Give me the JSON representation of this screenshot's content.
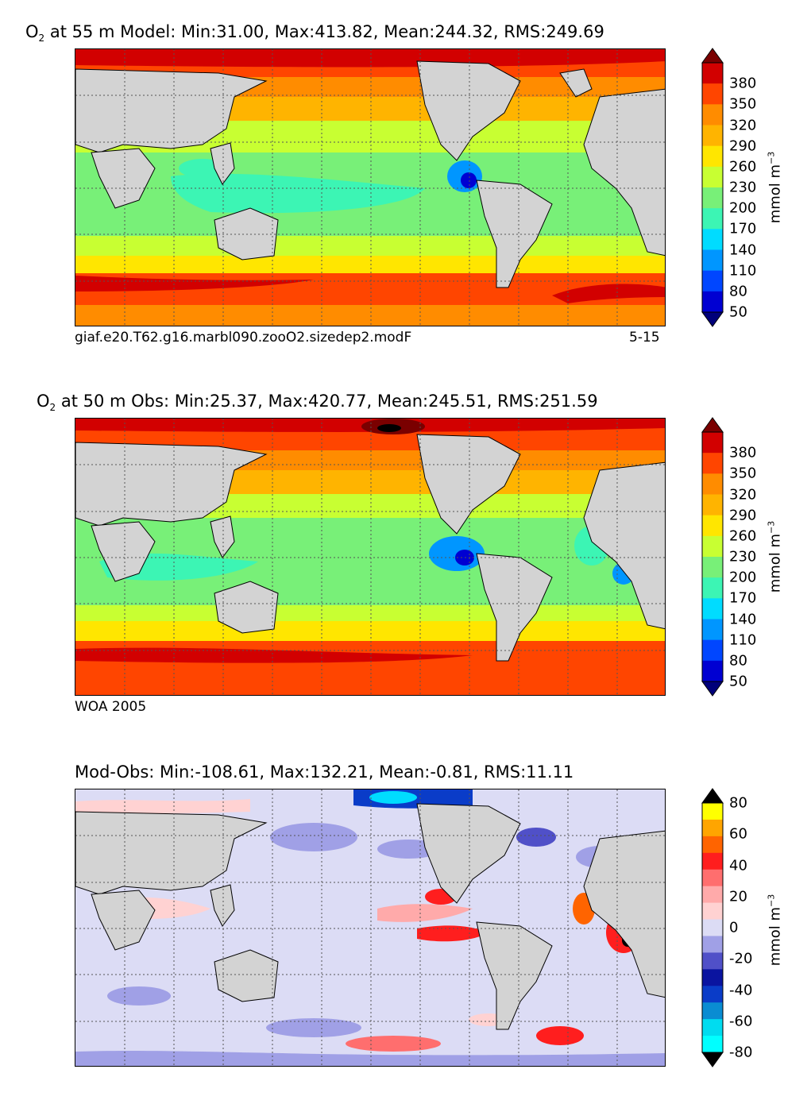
{
  "panels": [
    {
      "id": "model",
      "title_main": "O",
      "title_sub": "2",
      "title_rest": " at 55 m Model: Min:31.00, Max:413.82, Mean:244.32, RMS:249.69",
      "footer_left": "giaf.e20.T62.g16.marbl090.zooO2.sizedep2.modF",
      "footer_right": "5-15",
      "colorbar_ticks": [
        "380",
        "350",
        "320",
        "290",
        "260",
        "230",
        "200",
        "170",
        "140",
        "110",
        "80",
        "50"
      ],
      "colorbar_colors": [
        "#7a0000",
        "#d20000",
        "#ff4500",
        "#ff8c00",
        "#ffb400",
        "#ffe600",
        "#c8ff32",
        "#78f078",
        "#3cf5b4",
        "#00dcff",
        "#0096ff",
        "#0046ff",
        "#0000d2",
        "#00007a"
      ],
      "unit_label": "mmol m",
      "unit_sup": "−3"
    },
    {
      "id": "obs",
      "title_main": "O",
      "title_sub": "2",
      "title_rest": " at 50 m Obs: Min:25.37, Max:420.77, Mean:245.51, RMS:251.59",
      "footer_left": "WOA 2005",
      "footer_right": "",
      "colorbar_ticks": [
        "380",
        "350",
        "320",
        "290",
        "260",
        "230",
        "200",
        "170",
        "140",
        "110",
        "80",
        "50"
      ],
      "colorbar_colors": [
        "#7a0000",
        "#d20000",
        "#ff4500",
        "#ff8c00",
        "#ffb400",
        "#ffe600",
        "#c8ff32",
        "#78f078",
        "#3cf5b4",
        "#00dcff",
        "#0096ff",
        "#0046ff",
        "#0000d2",
        "#00007a"
      ],
      "unit_label": "mmol m",
      "unit_sup": "−3"
    },
    {
      "id": "diff",
      "title_main": "Mod-Obs: Min:-108.61, Max:132.21, Mean:-0.81, RMS:11.11",
      "title_sub": "",
      "title_rest": "",
      "footer_left": "",
      "footer_right": "",
      "colorbar_ticks": [
        "80",
        "60",
        "40",
        "20",
        "0",
        "-20",
        "-40",
        "-60",
        "-80"
      ],
      "colorbar_colors": [
        "#000000",
        "#ffff00",
        "#ffa500",
        "#ff6400",
        "#ff1e1e",
        "#ff6e6e",
        "#ffaaaa",
        "#ffd2d2",
        "#dcdcf5",
        "#a0a0e6",
        "#5050c8",
        "#0a14a0",
        "#0a3cc8",
        "#0a8cd2",
        "#00dcf0",
        "#00ffff",
        "#000000"
      ],
      "unit_label": "mmol m",
      "unit_sup": "−3"
    }
  ],
  "map_colors": {
    "land": "#d3d3d3",
    "grid": "#555555"
  }
}
